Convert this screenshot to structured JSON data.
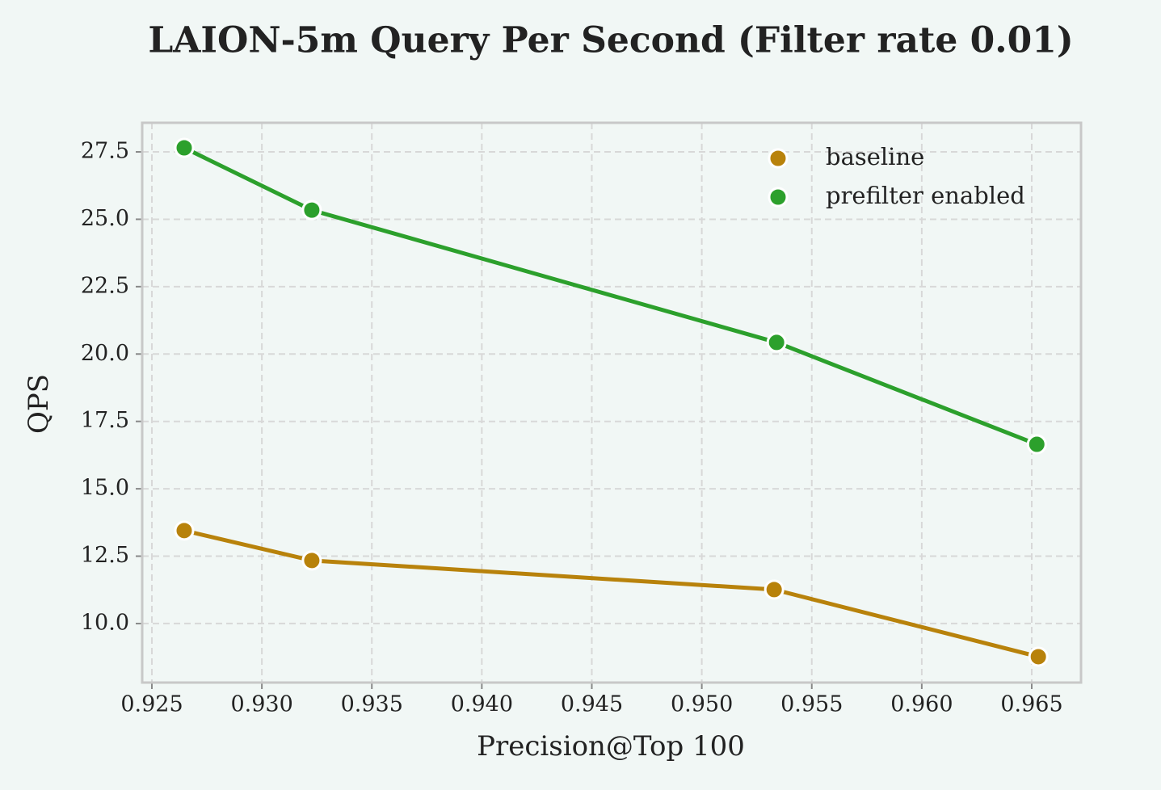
{
  "chart_data": {
    "type": "line",
    "title": "LAION-5m Query Per Second (Filter rate 0.01)",
    "x_label": "Precision@Top 100",
    "y_label": "QPS",
    "xlim": [
      0.92456,
      0.96724
    ],
    "ylim": [
      7.81,
      28.58
    ],
    "xticks": [
      0.925,
      0.93,
      0.935,
      0.94,
      0.945,
      0.95,
      0.955,
      0.96,
      0.965
    ],
    "xtick_labels": [
      "0.925",
      "0.930",
      "0.935",
      "0.940",
      "0.945",
      "0.950",
      "0.955",
      "0.960",
      "0.965"
    ],
    "yticks": [
      {
        "value": 10,
        "label": "10.0"
      },
      12.5,
      {
        "value": 15,
        "label": "15.0"
      },
      17.5,
      {
        "value": 20,
        "label": "20.0"
      },
      22.5,
      {
        "value": 25,
        "label": "25.0"
      },
      27.5
    ],
    "grid": true,
    "legend": "upper right",
    "series": [
      {
        "name": "baseline",
        "color": "#b8820b",
        "x": [
          0.92647,
          0.93227,
          0.95329,
          0.9653
        ],
        "values": [
          13.45,
          12.34,
          11.26,
          8.77
        ]
      },
      {
        "name": "prefilter enabled",
        "color": "#2ca02c",
        "x": [
          0.92647,
          0.93227,
          0.9534,
          0.96523
        ],
        "values": [
          27.65,
          25.34,
          20.43,
          16.65
        ]
      }
    ]
  }
}
